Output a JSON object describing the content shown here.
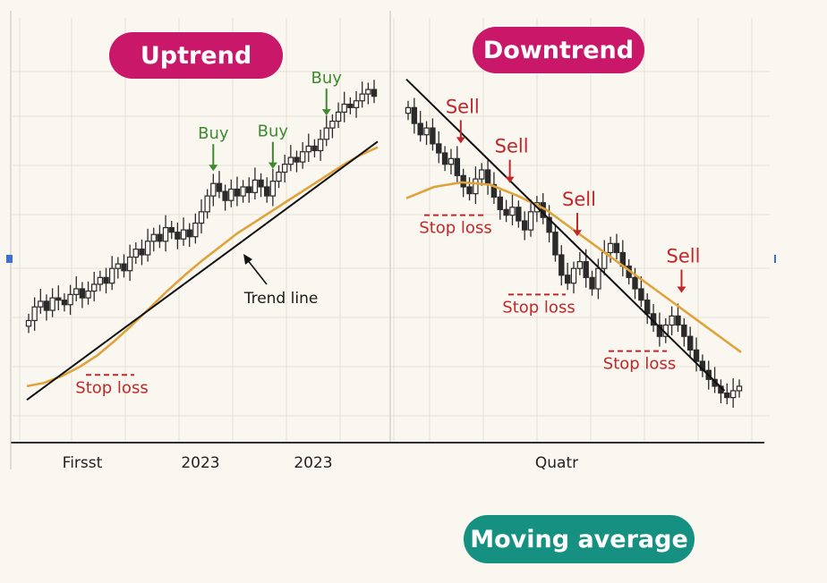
{
  "labels": {
    "uptrend": "Uptrend",
    "downtrend": "Downtrend",
    "moving_average": "Moving average",
    "trend_line": "Trend line",
    "buy": "Buy",
    "sell": "Sell",
    "stop_loss": "Stop loss"
  },
  "colors": {
    "background": "#faf7f0",
    "pill_pink": "#c9176a",
    "pill_teal": "#169080",
    "candle": "#2b2b2b",
    "moving_average": "#e0a33c",
    "trend_line": "#111111",
    "buy": "#3e8a2e",
    "sell": "#c0282a",
    "stop_loss": "#c0282a",
    "grid": "#e6e1d6"
  },
  "chart_data": [
    {
      "type": "candlestick",
      "title": "Uptrend",
      "x_tick_labels": [
        "Firsst",
        "2023",
        "2023"
      ],
      "close": [
        9.2,
        10.4,
        10.9,
        10.1,
        11.2,
        11.0,
        10.6,
        11.5,
        12.0,
        11.2,
        11.8,
        12.4,
        13.0,
        12.5,
        13.8,
        14.2,
        13.6,
        14.8,
        15.5,
        15.0,
        16.2,
        16.8,
        16.2,
        17.4,
        17.0,
        16.4,
        17.2,
        16.6,
        17.8,
        18.8,
        20.2,
        21.3,
        20.6,
        19.8,
        20.8,
        20.2,
        21.0,
        20.5,
        21.6,
        21.0,
        20.2,
        21.5,
        22.3,
        23.0,
        23.6,
        23.2,
        24.1,
        24.6,
        24.2,
        25.2,
        26.2,
        26.8,
        27.6,
        28.3,
        28.0,
        28.6,
        29.2,
        29.6,
        29.0
      ],
      "moving_average": [
        3.4,
        3.7,
        4.3,
        5.1,
        6.1,
        7.4,
        8.8,
        10.3,
        11.8,
        13.2,
        14.5,
        15.7,
        16.9,
        17.9,
        18.9,
        19.9,
        20.9,
        21.9,
        22.9,
        23.8,
        24.5
      ],
      "trend_line": {
        "start": [
          0,
          2.2
        ],
        "end": [
          58,
          25.0
        ]
      },
      "buy_signals": [
        31.0,
        41.0,
        50.0
      ],
      "stop_loss_level": 4.4,
      "annotations": [
        "Buy",
        "Buy",
        "Buy",
        "Trend line",
        "Stop loss"
      ]
    },
    {
      "type": "candlestick",
      "title": "Downtrend",
      "x_tick_labels": [
        "Quatr"
      ],
      "close": [
        28.0,
        26.6,
        25.6,
        26.2,
        24.8,
        24.0,
        23.0,
        23.5,
        22.0,
        21.0,
        20.4,
        21.7,
        22.5,
        21.2,
        20.1,
        19.0,
        18.5,
        19.2,
        18.0,
        17.2,
        18.8,
        19.6,
        18.3,
        17.0,
        15.0,
        13.2,
        12.5,
        13.8,
        14.4,
        13.0,
        12.0,
        13.8,
        15.2,
        16.0,
        15.2,
        14.0,
        13.0,
        12.0,
        11.0,
        9.8,
        8.8,
        7.8,
        8.8,
        9.6,
        8.8,
        7.8,
        6.6,
        5.6,
        4.8,
        4.0,
        3.4,
        2.8,
        2.4,
        3.0,
        3.4
      ],
      "moving_average": [
        20.0,
        21.0,
        21.4,
        21.2,
        20.2,
        19.0,
        17.2,
        15.4,
        13.6,
        11.8,
        10.0,
        8.2,
        6.4
      ],
      "trend_line": {
        "start": [
          0,
          30.5
        ],
        "end": [
          51,
          3.0
        ]
      },
      "sell_signals": [
        8.0,
        16.0,
        27.0,
        44.0
      ],
      "stop_loss_levels": [
        18.5,
        11.5,
        6.5
      ],
      "annotations": [
        "Sell",
        "Sell",
        "Sell",
        "Sell",
        "Stop loss",
        "Stop loss",
        "Stop loss"
      ]
    }
  ]
}
